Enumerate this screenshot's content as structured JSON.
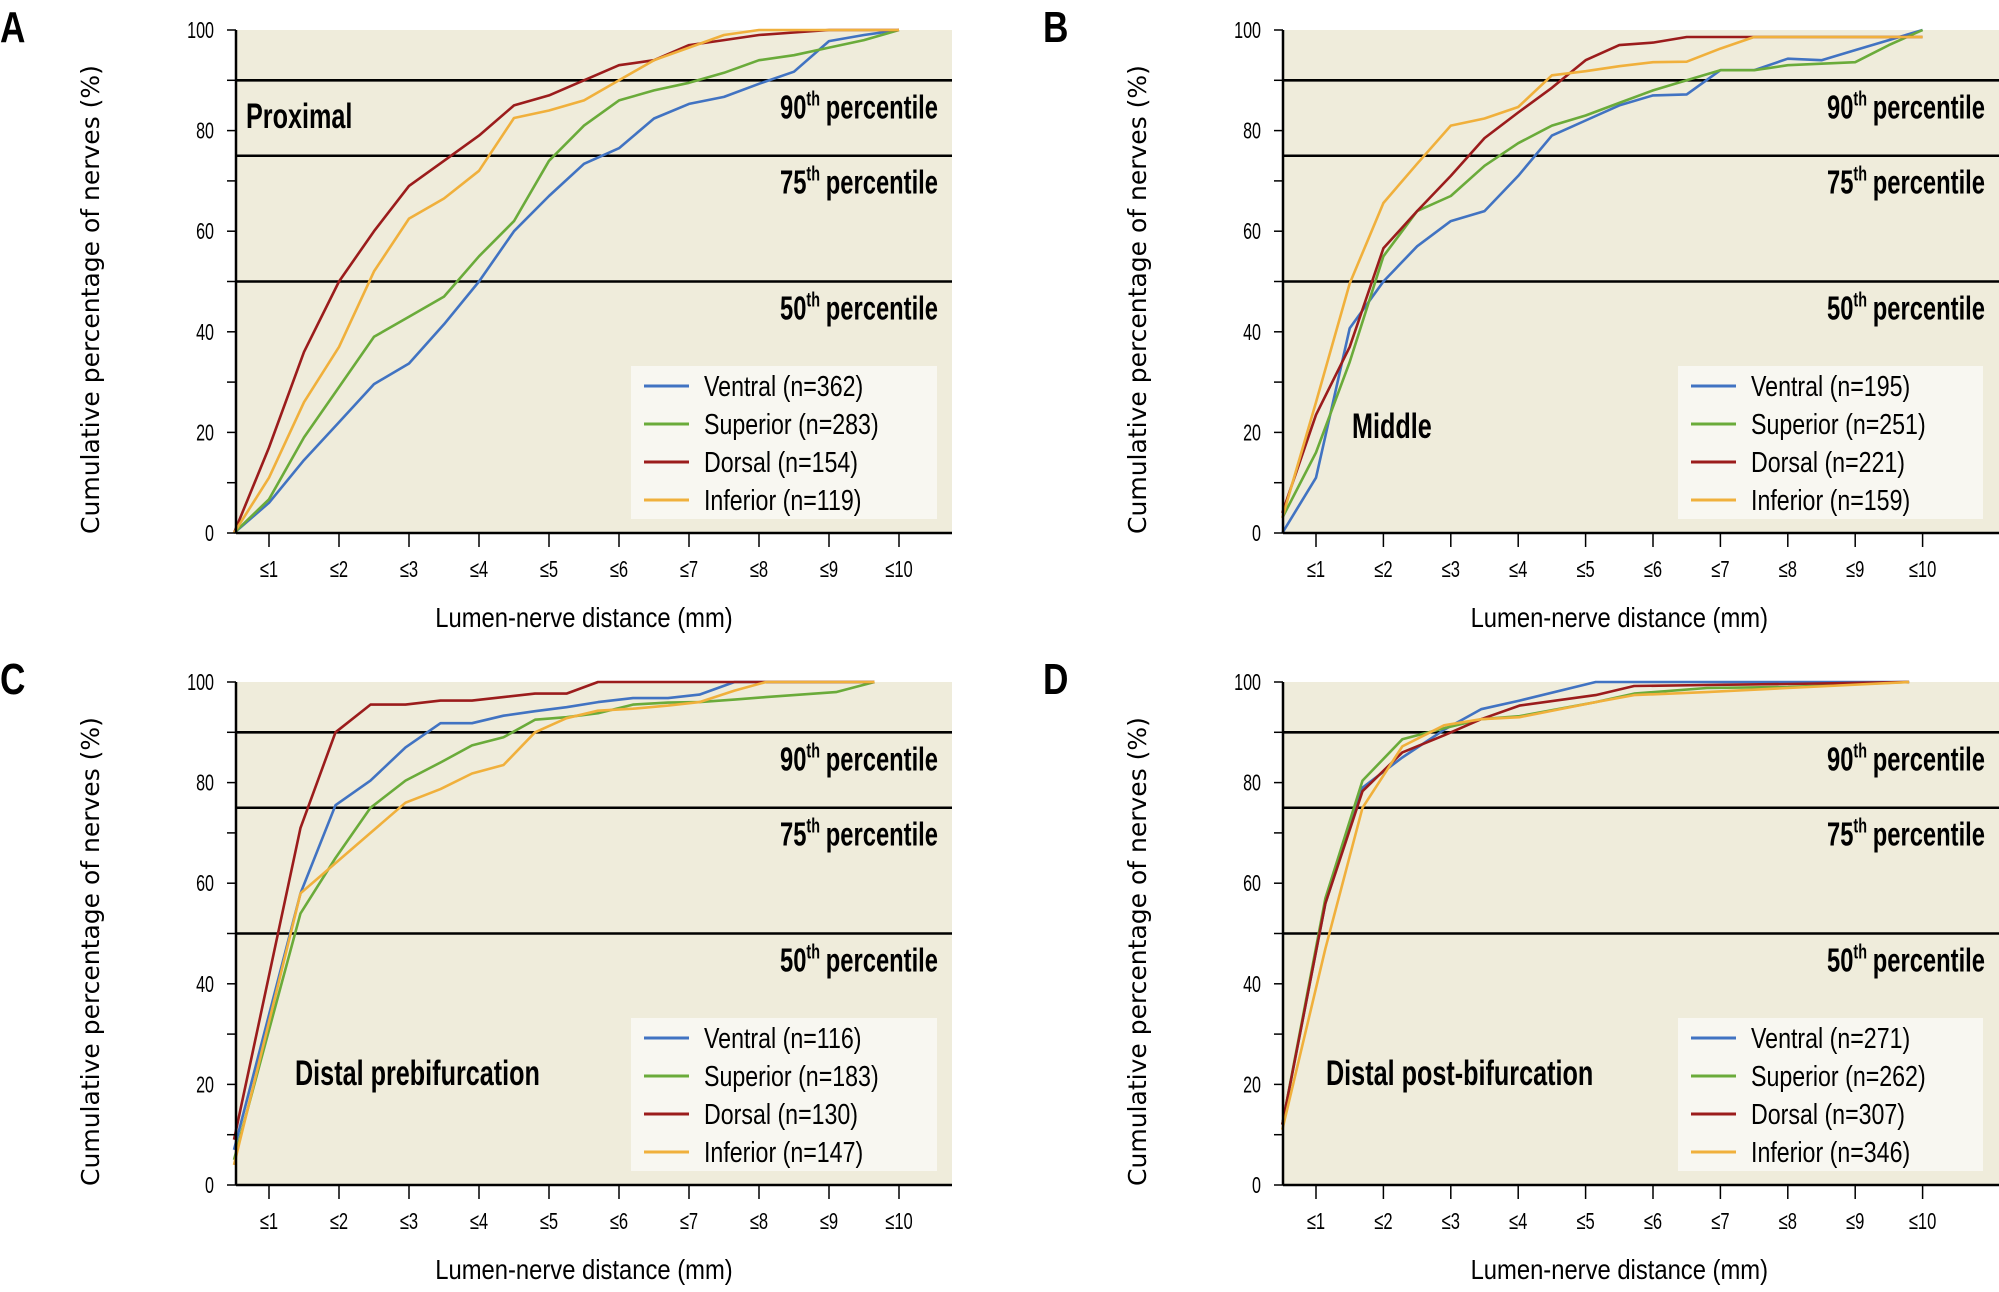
{
  "chart_data": [
    {
      "panel_letter": "A",
      "type": "line",
      "title": "Proximal",
      "xlabel": "Lumen-nerve distance (mm)",
      "ylabel": "Cumulative percentage of nerves (%)",
      "ylim": [
        0,
        100
      ],
      "xlim": [
        0.5,
        10.75
      ],
      "y_tick_labels": [
        "0",
        "20",
        "40",
        "60",
        "80",
        "100"
      ],
      "x_tick_labels": [
        "≤1",
        "≤2",
        "≤3",
        "≤4",
        "≤5",
        "≤6",
        "≤7",
        "≤8",
        "≤9",
        "≤10"
      ],
      "grid": false,
      "legend_position": "bottom-right",
      "percentile_lines": [
        {
          "value": 90,
          "num": "90",
          "sup": "th",
          "text": "percentile"
        },
        {
          "value": 75,
          "num": "75",
          "sup": "th",
          "text": "percentile"
        },
        {
          "value": 50,
          "num": "50",
          "sup": "th",
          "text": "percentile"
        }
      ],
      "series": [
        {
          "name": "Ventral (n=362)",
          "color": "#4173c2",
          "x": [
            0.5,
            1,
            1.5,
            2,
            2.5,
            3,
            3.5,
            4,
            4.5,
            5,
            5.5,
            6,
            6.5,
            7,
            7.5,
            8,
            8.5,
            9,
            9.5,
            10
          ],
          "y": [
            0,
            6,
            14.5,
            22,
            29.6,
            33.7,
            41.5,
            50,
            60,
            67,
            73.4,
            76.5,
            82.4,
            85.3,
            86.7,
            89.3,
            91.7,
            97.8,
            99,
            100
          ]
        },
        {
          "name": "Superior (n=283)",
          "color": "#6aab3a",
          "x": [
            0.5,
            1,
            1.5,
            2,
            2.5,
            3,
            3.5,
            4,
            4.5,
            5,
            5.5,
            6,
            6.5,
            7,
            7.5,
            8,
            8.5,
            9,
            9.5,
            10
          ],
          "y": [
            0,
            6.7,
            19,
            29,
            39,
            43,
            47,
            55,
            62,
            74,
            81,
            86,
            88,
            89.5,
            91.5,
            94,
            95,
            96.5,
            98,
            100
          ]
        },
        {
          "name": "Dorsal (n=154)",
          "color": "#9b1c1c",
          "x": [
            0.5,
            1,
            1.5,
            2,
            2.5,
            3,
            3.5,
            4,
            4.5,
            5,
            5.5,
            6,
            6.5,
            7,
            7.5,
            8,
            8.5,
            9,
            9.5,
            10
          ],
          "y": [
            0,
            17,
            36,
            50,
            60,
            69,
            74,
            79,
            85,
            87,
            90,
            93,
            94,
            97,
            98,
            99,
            99.5,
            100,
            100,
            100
          ]
        },
        {
          "name": "Inferior (n=119)",
          "color": "#f0b03c",
          "x": [
            0.5,
            1,
            1.5,
            2,
            2.5,
            3,
            3.5,
            4,
            4.5,
            5,
            5.5,
            6,
            6.5,
            7,
            7.5,
            8,
            8.5,
            9,
            9.5,
            10
          ],
          "y": [
            0,
            11,
            26,
            37,
            52,
            62.5,
            66.5,
            72,
            82.5,
            84,
            86,
            90,
            94,
            96.5,
            99,
            100,
            100,
            100,
            100,
            100
          ]
        }
      ]
    },
    {
      "panel_letter": "B",
      "type": "line",
      "title": "Middle",
      "xlabel": "Lumen-nerve distance (mm)",
      "ylabel": "Cumulative percentage of nerves (%)",
      "ylim": [
        0,
        100
      ],
      "xlim": [
        0.5,
        11.1
      ],
      "y_tick_labels": [
        "0",
        "20",
        "40",
        "60",
        "80",
        "100"
      ],
      "x_tick_labels": [
        "≤1",
        "≤2",
        "≤3",
        "≤4",
        "≤5",
        "≤6",
        "≤7",
        "≤8",
        "≤9",
        "≤10"
      ],
      "grid": false,
      "legend_position": "bottom-right",
      "percentile_lines": [
        {
          "value": 90,
          "num": "90",
          "sup": "th",
          "text": "percentile"
        },
        {
          "value": 75,
          "num": "75",
          "sup": "th",
          "text": "percentile"
        },
        {
          "value": 50,
          "num": "50",
          "sup": "th",
          "text": "percentile"
        }
      ],
      "series": [
        {
          "name": "Ventral (n=195)",
          "color": "#4173c2",
          "x": [
            0.5,
            1,
            1.5,
            2,
            2.5,
            3,
            3.5,
            4,
            4.5,
            5,
            5.5,
            6,
            6.5,
            7,
            7.5,
            8,
            8.5,
            9,
            9.5,
            10
          ],
          "y": [
            0,
            11,
            40.7,
            50,
            57,
            62,
            64,
            71,
            79,
            82,
            85,
            87,
            87.2,
            92,
            92,
            94.3,
            94,
            96,
            98,
            100
          ]
        },
        {
          "name": "Superior (n=251)",
          "color": "#6aab3a",
          "x": [
            0.5,
            1,
            1.5,
            2,
            2.5,
            3,
            3.5,
            4,
            4.5,
            5,
            5.5,
            6,
            6.5,
            7,
            7.5,
            8,
            8.5,
            9,
            9.5,
            10
          ],
          "y": [
            3,
            16,
            34,
            55,
            64,
            67,
            73,
            77.5,
            81,
            83,
            85.5,
            88,
            90,
            92,
            92,
            93,
            93.3,
            93.6,
            97,
            100
          ]
        },
        {
          "name": "Dorsal (n=221)",
          "color": "#9b1c1c",
          "x": [
            0.5,
            1,
            1.5,
            2,
            2.5,
            3,
            3.5,
            4,
            4.5,
            5,
            5.5,
            6,
            6.5,
            7,
            7.5,
            8,
            8.5,
            9,
            9.5,
            10
          ],
          "y": [
            4,
            23.5,
            37,
            56.6,
            64,
            71,
            78.5,
            83.6,
            88.5,
            94,
            97,
            97.5,
            98.6,
            98.6,
            98.6,
            98.6,
            98.6,
            98.6,
            98.6,
            98.6
          ]
        },
        {
          "name": "Inferior (n=159)",
          "color": "#f0b03c",
          "x": [
            0.5,
            1,
            1.5,
            2,
            2.5,
            3,
            3.5,
            4,
            4.5,
            5,
            5.5,
            6,
            6.5,
            7,
            7.5,
            8,
            8.5,
            9,
            9.5,
            10
          ],
          "y": [
            3,
            26,
            49.6,
            65.6,
            73.4,
            81,
            82.4,
            84.7,
            91,
            91.8,
            92.8,
            93.6,
            93.7,
            96.3,
            98.6,
            98.6,
            98.6,
            98.6,
            98.6,
            98.6
          ]
        }
      ]
    },
    {
      "panel_letter": "C",
      "type": "line",
      "title": "Distal prebifurcation",
      "xlabel": "Lumen-nerve distance (mm)",
      "ylabel": "Cumulative percentage of nerves (%)",
      "ylim": [
        0,
        100
      ],
      "xlim": [
        0.5,
        10.75
      ],
      "y_tick_labels": [
        "0",
        "20",
        "40",
        "60",
        "80",
        "100"
      ],
      "x_tick_labels": [
        "≤1",
        "≤2",
        "≤3",
        "≤4",
        "≤5",
        "≤6",
        "≤7",
        "≤8",
        "≤9",
        "≤10"
      ],
      "grid": false,
      "legend_position": "bottom-right",
      "percentile_lines": [
        {
          "value": 90,
          "num": "90",
          "sup": "th",
          "text": "percentile"
        },
        {
          "value": 75,
          "num": "75",
          "sup": "th",
          "text": "percentile"
        },
        {
          "value": 50,
          "num": "50",
          "sup": "th",
          "text": "percentile"
        }
      ],
      "series": [
        {
          "name": "Ventral (n=116)",
          "color": "#4173c2",
          "x": [
            0.5,
            1.45,
            1.95,
            2.45,
            2.95,
            3.45,
            3.9,
            4.35,
            4.8,
            5.25,
            5.7,
            6.2,
            6.7,
            7.15,
            7.65,
            8.1,
            9.1,
            9.65
          ],
          "y": [
            7,
            58,
            75.5,
            80.4,
            87,
            91.8,
            91.8,
            93.3,
            94.2,
            95,
            96,
            96.8,
            96.8,
            97.5,
            100,
            100,
            100,
            100
          ]
        },
        {
          "name": "Superior (n=183)",
          "color": "#6aab3a",
          "x": [
            0.5,
            1.45,
            1.95,
            2.45,
            2.95,
            3.45,
            3.9,
            4.35,
            4.8,
            5.25,
            5.7,
            6.2,
            6.7,
            7.15,
            7.65,
            8.1,
            9.1,
            9.65
          ],
          "y": [
            5,
            54,
            65,
            75,
            80.4,
            84,
            87.4,
            89,
            92.5,
            93,
            93.8,
            95.5,
            95.9,
            96,
            96.5,
            97,
            98,
            100
          ]
        },
        {
          "name": "Dorsal (n=130)",
          "color": "#9b1c1c",
          "x": [
            0.5,
            1.45,
            1.95,
            2.45,
            2.95,
            3.45,
            3.9,
            4.35,
            4.8,
            5.25,
            5.7,
            6.2,
            6.7,
            7.15,
            7.65,
            8.1,
            9.1,
            9.65
          ],
          "y": [
            9,
            71,
            90,
            95.5,
            95.5,
            96.3,
            96.3,
            97,
            97.7,
            97.7,
            100,
            100,
            100,
            100,
            100,
            100,
            100,
            100
          ]
        },
        {
          "name": "Inferior (n=147)",
          "color": "#f0b03c",
          "x": [
            0.5,
            1.45,
            1.95,
            2.45,
            2.95,
            3.45,
            3.9,
            4.35,
            4.8,
            5.25,
            5.7,
            6.2,
            6.7,
            7.15,
            7.65,
            8.1,
            9.1,
            9.65
          ],
          "y": [
            4,
            58,
            64,
            70,
            76,
            78.7,
            81.8,
            83.5,
            90,
            92.8,
            94.3,
            94.7,
            95.3,
            96,
            98.3,
            100,
            100,
            100
          ]
        }
      ]
    },
    {
      "panel_letter": "D",
      "type": "line",
      "title": "Distal post-bifurcation",
      "xlabel": "Lumen-nerve distance (mm)",
      "ylabel": "Cumulative percentage of nerves (%)",
      "ylim": [
        0,
        100
      ],
      "xlim": [
        0.5,
        11.1
      ],
      "y_tick_labels": [
        "0",
        "20",
        "40",
        "60",
        "80",
        "100"
      ],
      "x_tick_labels": [
        "≤1",
        "≤2",
        "≤3",
        "≤4",
        "≤5",
        "≤6",
        "≤7",
        "≤8",
        "≤9",
        "≤10"
      ],
      "grid": false,
      "legend_position": "bottom-right",
      "percentile_lines": [
        {
          "value": 90,
          "num": "90",
          "sup": "th",
          "text": "percentile"
        },
        {
          "value": 75,
          "num": "75",
          "sup": "th",
          "text": "percentile"
        },
        {
          "value": 50,
          "num": "50",
          "sup": "th",
          "text": "percentile"
        }
      ],
      "series": [
        {
          "name": "Ventral (n=271)",
          "color": "#4173c2",
          "x": [
            0.5,
            1.14,
            1.69,
            2.28,
            2.9,
            3.45,
            4.02,
            5.15,
            5.72,
            6.8,
            8,
            9.8
          ],
          "y": [
            12,
            56,
            79,
            85,
            90.5,
            94.6,
            96.3,
            100,
            100,
            100,
            100,
            100
          ]
        },
        {
          "name": "Superior (n=262)",
          "color": "#6aab3a",
          "x": [
            0.5,
            1.14,
            1.69,
            2.28,
            2.9,
            3.45,
            4.02,
            5.15,
            5.72,
            6.8,
            8,
            9.8
          ],
          "y": [
            12,
            57,
            80.4,
            88.6,
            90.8,
            92.6,
            93.2,
            96,
            97.7,
            98.8,
            99,
            100
          ]
        },
        {
          "name": "Dorsal (n=307)",
          "color": "#9b1c1c",
          "x": [
            0.5,
            1.14,
            1.69,
            2.28,
            2.9,
            3.45,
            4.02,
            5.15,
            5.72,
            6.8,
            8,
            9.8
          ],
          "y": [
            12,
            56,
            78.3,
            86,
            89.4,
            92.6,
            95.3,
            97.4,
            99.2,
            99.4,
            99.6,
            100
          ]
        },
        {
          "name": "Inferior (n=346)",
          "color": "#f0b03c",
          "x": [
            0.5,
            1.14,
            1.69,
            2.28,
            2.9,
            3.45,
            4.02,
            5.15,
            5.72,
            6.8,
            8,
            9.8
          ],
          "y": [
            11,
            47,
            75,
            87.2,
            91.4,
            92.6,
            93,
            96,
            97.4,
            98,
            98.8,
            100
          ]
        }
      ]
    }
  ]
}
